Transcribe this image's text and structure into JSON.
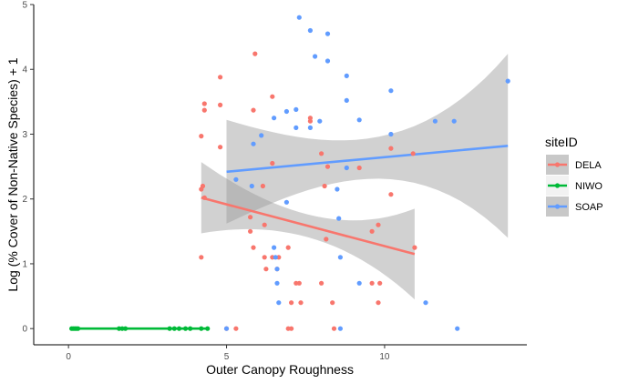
{
  "chart_data": {
    "type": "scatter",
    "xlabel": "Outer Canopy Roughness",
    "ylabel": "Log (% Cover of Non-Native Species) + 1",
    "xlim": [
      -1.1,
      14.5
    ],
    "ylim": [
      -0.25,
      5.0
    ],
    "x_ticks": [
      0,
      5,
      10
    ],
    "y_ticks": [
      0,
      1,
      2,
      3,
      4,
      5
    ],
    "grid": false,
    "legend": {
      "title": "siteID",
      "position": "right"
    },
    "series": [
      {
        "name": "DELA",
        "color": "#F8766D",
        "points": [
          [
            4.2,
            1.1
          ],
          [
            4.2,
            2.15
          ],
          [
            4.25,
            2.2
          ],
          [
            4.2,
            2.97
          ],
          [
            4.3,
            3.37
          ],
          [
            4.3,
            3.47
          ],
          [
            4.3,
            2.02
          ],
          [
            4.8,
            3.45
          ],
          [
            4.8,
            3.88
          ],
          [
            4.8,
            2.8
          ],
          [
            5.0,
            0.0
          ],
          [
            5.3,
            0.0
          ],
          [
            5.75,
            1.72
          ],
          [
            5.75,
            1.5
          ],
          [
            5.85,
            1.25
          ],
          [
            5.85,
            3.37
          ],
          [
            5.9,
            4.24
          ],
          [
            6.15,
            2.2
          ],
          [
            6.2,
            1.6
          ],
          [
            6.2,
            1.1
          ],
          [
            6.25,
            0.92
          ],
          [
            6.45,
            1.1
          ],
          [
            6.45,
            2.55
          ],
          [
            6.45,
            3.58
          ],
          [
            6.6,
            0.92
          ],
          [
            6.65,
            1.1
          ],
          [
            6.95,
            1.25
          ],
          [
            6.95,
            0.0
          ],
          [
            7.05,
            0.0
          ],
          [
            7.05,
            0.4
          ],
          [
            7.2,
            0.7
          ],
          [
            7.3,
            0.7
          ],
          [
            7.35,
            0.4
          ],
          [
            7.65,
            3.25
          ],
          [
            7.65,
            3.2
          ],
          [
            8.0,
            2.7
          ],
          [
            8.1,
            2.2
          ],
          [
            8.2,
            2.5
          ],
          [
            8.15,
            1.38
          ],
          [
            8.0,
            0.7
          ],
          [
            8.35,
            0.4
          ],
          [
            8.4,
            0.0
          ],
          [
            9.2,
            2.48
          ],
          [
            9.6,
            1.5
          ],
          [
            9.6,
            0.7
          ],
          [
            9.8,
            1.6
          ],
          [
            9.8,
            0.4
          ],
          [
            9.85,
            0.7
          ],
          [
            10.2,
            2.78
          ],
          [
            10.2,
            2.07
          ],
          [
            10.9,
            2.7
          ],
          [
            10.95,
            1.25
          ]
        ],
        "fit": {
          "x": [
            4.2,
            10.95
          ],
          "y": [
            2.02,
            1.15
          ],
          "ci_width": [
            0.55,
            0.7
          ]
        }
      },
      {
        "name": "NIWO",
        "color": "#00BA38",
        "points": [
          [
            0.1,
            0.0
          ],
          [
            0.15,
            0.0
          ],
          [
            0.2,
            0.0
          ],
          [
            0.25,
            0.0
          ],
          [
            0.3,
            0.0
          ],
          [
            1.6,
            0.0
          ],
          [
            1.7,
            0.0
          ],
          [
            1.8,
            0.0
          ],
          [
            3.2,
            0.0
          ],
          [
            3.35,
            0.0
          ],
          [
            3.5,
            0.0
          ],
          [
            3.7,
            0.0
          ],
          [
            3.85,
            0.0
          ],
          [
            4.2,
            0.0
          ],
          [
            4.4,
            0.0
          ]
        ],
        "fit": {
          "x": [
            0.1,
            4.4
          ],
          "y": [
            0.0,
            0.0
          ],
          "ci_width": [
            0.0,
            0.0
          ]
        }
      },
      {
        "name": "SOAP",
        "color": "#619CFF",
        "points": [
          [
            5.0,
            0.0
          ],
          [
            5.3,
            2.3
          ],
          [
            5.8,
            2.2
          ],
          [
            5.85,
            2.85
          ],
          [
            6.1,
            2.98
          ],
          [
            6.5,
            3.25
          ],
          [
            6.5,
            1.25
          ],
          [
            6.55,
            1.1
          ],
          [
            6.6,
            0.92
          ],
          [
            6.6,
            0.7
          ],
          [
            6.65,
            0.4
          ],
          [
            6.9,
            3.35
          ],
          [
            6.9,
            1.95
          ],
          [
            7.2,
            3.38
          ],
          [
            7.2,
            3.1
          ],
          [
            7.3,
            4.8
          ],
          [
            7.65,
            4.6
          ],
          [
            7.65,
            3.1
          ],
          [
            7.8,
            4.2
          ],
          [
            7.95,
            3.2
          ],
          [
            8.2,
            4.55
          ],
          [
            8.2,
            4.13
          ],
          [
            8.5,
            2.15
          ],
          [
            8.55,
            1.7
          ],
          [
            8.6,
            1.1
          ],
          [
            8.6,
            0.0
          ],
          [
            8.8,
            3.9
          ],
          [
            8.8,
            3.52
          ],
          [
            8.8,
            2.48
          ],
          [
            9.2,
            3.22
          ],
          [
            9.2,
            0.7
          ],
          [
            10.2,
            3.67
          ],
          [
            10.2,
            3.0
          ],
          [
            11.3,
            0.4
          ],
          [
            11.6,
            3.2
          ],
          [
            12.2,
            3.2
          ],
          [
            12.3,
            0.0
          ],
          [
            13.9,
            3.82
          ]
        ],
        "fit": {
          "x": [
            5.0,
            13.9
          ],
          "y": [
            2.42,
            2.82
          ],
          "ci_width": [
            0.8,
            1.42
          ]
        }
      }
    ]
  }
}
